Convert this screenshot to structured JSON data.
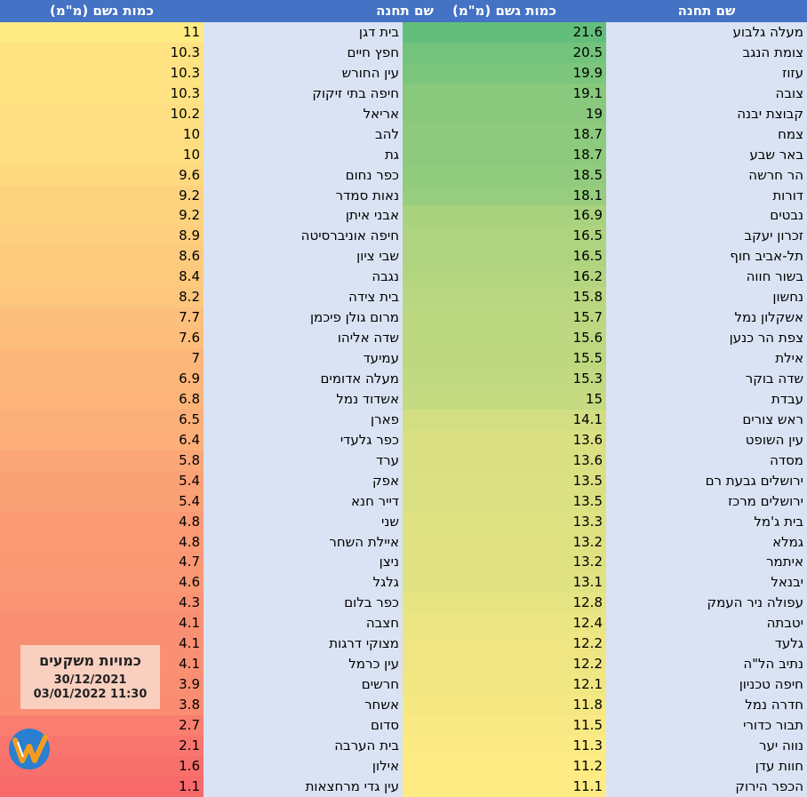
{
  "headers": {
    "left_amount": "כמות גשם (מ\"מ)",
    "left_station": "שם תחנה",
    "right_amount": "כמות גשם (מ\"מ)",
    "right_station": "שם תחנה"
  },
  "right_table": [
    {
      "station": "מעלה גלבוע",
      "rain": "21.6"
    },
    {
      "station": "צומת הנגב",
      "rain": "20.5"
    },
    {
      "station": "עזוז",
      "rain": "19.9"
    },
    {
      "station": "צובה",
      "rain": "19.1"
    },
    {
      "station": "קבוצת יבנה",
      "rain": "19"
    },
    {
      "station": "צמח",
      "rain": "18.7"
    },
    {
      "station": "באר שבע",
      "rain": "18.7"
    },
    {
      "station": "הר חרשה",
      "rain": "18.5"
    },
    {
      "station": "דורות",
      "rain": "18.1"
    },
    {
      "station": "נבטים",
      "rain": "16.9"
    },
    {
      "station": "זכרון יעקב",
      "rain": "16.5"
    },
    {
      "station": "תל-אביב חוף",
      "rain": "16.5"
    },
    {
      "station": "בשור חווה",
      "rain": "16.2"
    },
    {
      "station": "נחשון",
      "rain": "15.8"
    },
    {
      "station": "אשקלון נמל",
      "rain": "15.7"
    },
    {
      "station": "צפת הר כנען",
      "rain": "15.6"
    },
    {
      "station": "אילת",
      "rain": "15.5"
    },
    {
      "station": "שדה בוקר",
      "rain": "15.3"
    },
    {
      "station": "עבדת",
      "rain": "15"
    },
    {
      "station": "ראש צורים",
      "rain": "14.1"
    },
    {
      "station": "עין השופט",
      "rain": "13.6"
    },
    {
      "station": "מסדה",
      "rain": "13.6"
    },
    {
      "station": "ירושלים גבעת רם",
      "rain": "13.5"
    },
    {
      "station": "ירושלים מרכז",
      "rain": "13.5"
    },
    {
      "station": "בית ג'מל",
      "rain": "13.3"
    },
    {
      "station": "גמלא",
      "rain": "13.2"
    },
    {
      "station": "איתמר",
      "rain": "13.2"
    },
    {
      "station": "יבנאל",
      "rain": "13.1"
    },
    {
      "station": "עפולה ניר העמק",
      "rain": "12.8"
    },
    {
      "station": "יטבתה",
      "rain": "12.4"
    },
    {
      "station": "גלעד",
      "rain": "12.2"
    },
    {
      "station": "נתיב הל\"ה",
      "rain": "12.2"
    },
    {
      "station": "חיפה טכניון",
      "rain": "12.1"
    },
    {
      "station": "חדרה נמל",
      "rain": "11.8"
    },
    {
      "station": "תבור כדורי",
      "rain": "11.5"
    },
    {
      "station": "נווה יער",
      "rain": "11.3"
    },
    {
      "station": "חוות עדן",
      "rain": "11.2"
    },
    {
      "station": "הכפר הירוק",
      "rain": "11.1"
    }
  ],
  "left_table": [
    {
      "station": "בית דגן",
      "rain": "11"
    },
    {
      "station": "חפץ חיים",
      "rain": "10.3"
    },
    {
      "station": "עין החורש",
      "rain": "10.3"
    },
    {
      "station": "חיפה בתי זיקוק",
      "rain": "10.3"
    },
    {
      "station": "אריאל",
      "rain": "10.2"
    },
    {
      "station": "להב",
      "rain": "10"
    },
    {
      "station": "גת",
      "rain": "10"
    },
    {
      "station": "כפר נחום",
      "rain": "9.6"
    },
    {
      "station": "נאות סמדר",
      "rain": "9.2"
    },
    {
      "station": "אבני איתן",
      "rain": "9.2"
    },
    {
      "station": "חיפה אוניברסיטה",
      "rain": "8.9"
    },
    {
      "station": "שבי ציון",
      "rain": "8.6"
    },
    {
      "station": "נגבה",
      "rain": "8.4"
    },
    {
      "station": "בית צידה",
      "rain": "8.2"
    },
    {
      "station": "מרום גולן פיכמן",
      "rain": "7.7"
    },
    {
      "station": "שדה אליהו",
      "rain": "7.6"
    },
    {
      "station": "עמיעד",
      "rain": "7"
    },
    {
      "station": "מעלה אדומים",
      "rain": "6.9"
    },
    {
      "station": "אשדוד נמל",
      "rain": "6.8"
    },
    {
      "station": "פארן",
      "rain": "6.5"
    },
    {
      "station": "כפר גלעדי",
      "rain": "6.4"
    },
    {
      "station": "ערד",
      "rain": "5.8"
    },
    {
      "station": "אפק",
      "rain": "5.4"
    },
    {
      "station": "דייר חנא",
      "rain": "5.4"
    },
    {
      "station": "שני",
      "rain": "4.8"
    },
    {
      "station": "איילת השחר",
      "rain": "4.8"
    },
    {
      "station": "ניצן",
      "rain": "4.7"
    },
    {
      "station": "גלגל",
      "rain": "4.6"
    },
    {
      "station": "כפר בלום",
      "rain": "4.3"
    },
    {
      "station": "חצבה",
      "rain": "4.1"
    },
    {
      "station": "מצוקי דרגות",
      "rain": "4.1"
    },
    {
      "station": "עין כרמל",
      "rain": "4.1"
    },
    {
      "station": "חרשים",
      "rain": "3.9"
    },
    {
      "station": "אשחר",
      "rain": "3.8"
    },
    {
      "station": "סדום",
      "rain": "2.7"
    },
    {
      "station": "בית הערבה",
      "rain": "2.1"
    },
    {
      "station": "אילון",
      "rain": "1.6"
    },
    {
      "station": "עין גדי מרחצאות",
      "rain": "1.1"
    }
  ],
  "badge": {
    "title": "כמויות משקעים",
    "date_from": "30/12/2021",
    "date_to": "03/01/2022 11:30"
  },
  "colors": {
    "header_bg": "#4472c4",
    "station_bg": "#dae3f3",
    "badge_bg": "#f9cfc0",
    "green_high": "#63be7b",
    "yellow": "#ffeb84",
    "red_low": "#f8696b",
    "logo_orange": "#f39c1e",
    "logo_blue": "#2a7fd0"
  },
  "logo_icon": "w-logo-icon"
}
